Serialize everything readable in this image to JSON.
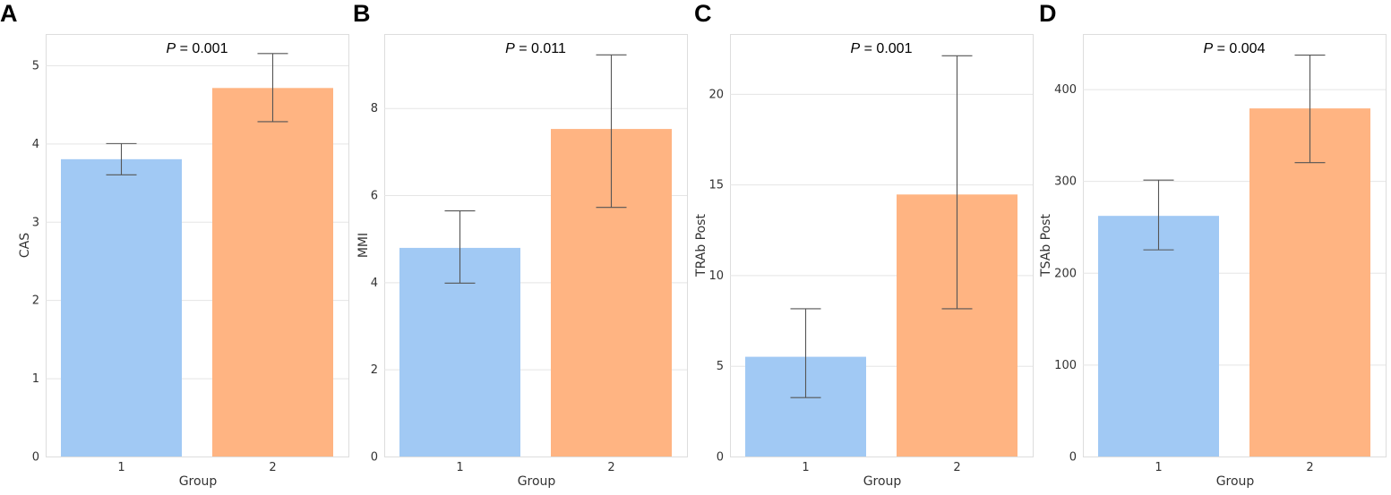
{
  "figure": {
    "xlabel": "Group",
    "categories": [
      "1",
      "2"
    ],
    "colors": {
      "group1": "#A1C9F4",
      "group2": "#FFB482",
      "grid": "#e5e5e5",
      "frame": "#dddddd",
      "errorbar": "#555555"
    }
  },
  "chart_data": [
    {
      "type": "bar",
      "panel_label": "A",
      "categories": [
        "1",
        "2"
      ],
      "values": [
        3.8,
        4.71
      ],
      "err_low": [
        3.6,
        4.28
      ],
      "err_high": [
        4.0,
        5.15
      ],
      "ylabel": "CAS",
      "xlabel": "Group",
      "ylim": [
        0,
        5.4
      ],
      "yticks": [
        0,
        1,
        2,
        3,
        4,
        5
      ],
      "p_prefix": "P",
      "p_value": " = 0.001"
    },
    {
      "type": "bar",
      "panel_label": "B",
      "categories": [
        "1",
        "2"
      ],
      "values": [
        4.79,
        7.52
      ],
      "err_low": [
        3.98,
        5.72
      ],
      "err_high": [
        5.64,
        9.22
      ],
      "ylabel": "MMI",
      "xlabel": "Group",
      "ylim": [
        0,
        9.7
      ],
      "yticks": [
        0,
        2,
        4,
        6,
        8
      ],
      "p_prefix": "P",
      "p_value": " = 0.011"
    },
    {
      "type": "bar",
      "panel_label": "C",
      "categories": [
        "1",
        "2"
      ],
      "values": [
        5.5,
        14.45
      ],
      "err_low": [
        3.25,
        8.15
      ],
      "err_high": [
        8.15,
        22.1
      ],
      "ylabel": "TRAb Post",
      "xlabel": "Group",
      "ylim": [
        0,
        23.3
      ],
      "yticks": [
        0,
        5,
        10,
        15,
        20
      ],
      "p_prefix": "P",
      "p_value": " = 0.001"
    },
    {
      "type": "bar",
      "panel_label": "D",
      "categories": [
        "1",
        "2"
      ],
      "values": [
        262,
        379
      ],
      "err_low": [
        225,
        320
      ],
      "err_high": [
        301,
        437
      ],
      "ylabel": "TSAb Post",
      "xlabel": "Group",
      "ylim": [
        0,
        460
      ],
      "yticks": [
        0,
        100,
        200,
        300,
        400
      ],
      "p_prefix": "P",
      "p_value": " = 0.004"
    }
  ]
}
